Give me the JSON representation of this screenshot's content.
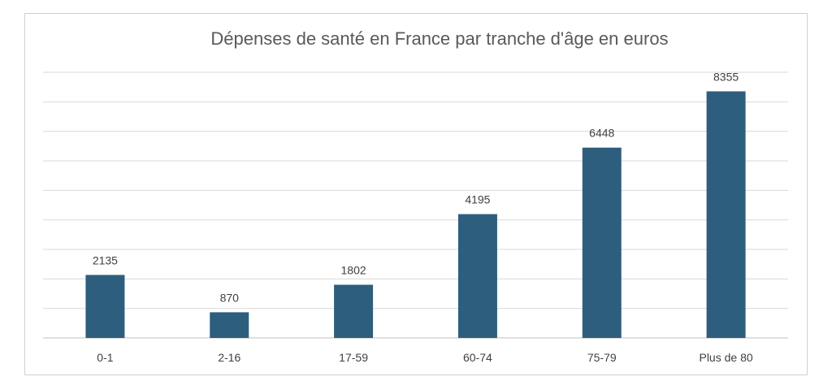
{
  "chart_data": {
    "type": "bar",
    "title": "Dépenses de santé en France par tranche d'âge en euros",
    "xlabel": "",
    "ylabel": "",
    "categories": [
      "0-1",
      "2-16",
      "17-59",
      "60-74",
      "75-79",
      "Plus de 80"
    ],
    "values": [
      2135,
      870,
      1802,
      4195,
      6448,
      8355
    ],
    "data_labels": [
      "2135",
      "870",
      "1802",
      "4195",
      "6448",
      "8355"
    ],
    "ylim": [
      0,
      9000
    ],
    "y_gridline_step": 1000,
    "y_tick_labels_shown": false,
    "grid": true,
    "legend": "none",
    "colors": {
      "bar": "#2E5E7E",
      "gridline": "#d9d9d9",
      "axis": "#bfbfbf",
      "title": "#595959",
      "text": "#404040"
    }
  }
}
